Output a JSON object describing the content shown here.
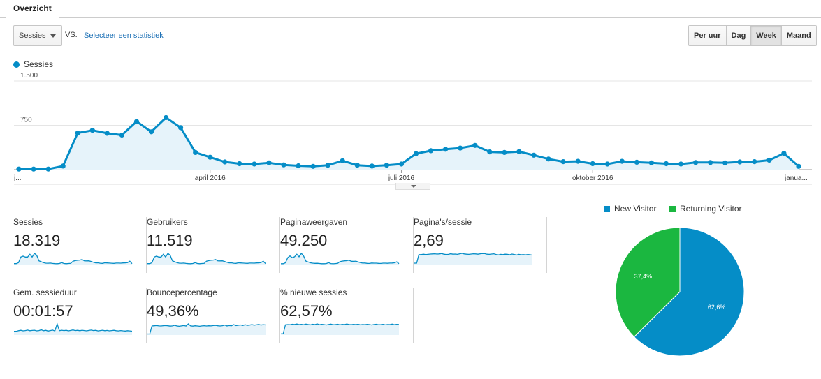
{
  "tab": {
    "label": "Overzicht"
  },
  "controls": {
    "metric_select": "Sessies",
    "vs_label": "VS.",
    "compare_link": "Selecteer een statistiek",
    "granularity": [
      {
        "label": "Per uur",
        "active": false
      },
      {
        "label": "Dag",
        "active": false
      },
      {
        "label": "Week",
        "active": true
      },
      {
        "label": "Maand",
        "active": false
      }
    ]
  },
  "colors": {
    "primary": "#058dc7",
    "fill": "#e6f3fa",
    "new": "#058dc7",
    "returning": "#1bb740"
  },
  "chart_data": [
    {
      "type": "area",
      "series": [
        {
          "name": "Sessies",
          "values": [
            10,
            10,
            10,
            60,
            620,
            665,
            615,
            585,
            815,
            640,
            880,
            710,
            290,
            210,
            130,
            100,
            95,
            115,
            80,
            65,
            55,
            75,
            150,
            75,
            60,
            75,
            95,
            270,
            320,
            345,
            365,
            410,
            300,
            290,
            305,
            245,
            180,
            135,
            140,
            100,
            95,
            140,
            125,
            115,
            100,
            95,
            120,
            120,
            115,
            130,
            135,
            160,
            275,
            55
          ]
        }
      ],
      "x_tick_labels": [
        "j...",
        "april 2016",
        "juli 2016",
        "oktober 2016",
        "janua..."
      ],
      "y_tick_labels": [
        "1.500",
        "750"
      ],
      "ylim": [
        0,
        1500
      ],
      "grid": true,
      "legend": "top-left"
    },
    {
      "type": "pie",
      "labels": [
        "New Visitor",
        "Returning Visitor"
      ],
      "values": [
        62.6,
        37.4
      ],
      "data_labels": [
        "62,6%",
        "37,4%"
      ],
      "legend": "top"
    }
  ],
  "metrics": [
    {
      "label": "Sessies",
      "value": "18.319",
      "spark": [
        1,
        1,
        2,
        8,
        9,
        8,
        8,
        11,
        8,
        12,
        10,
        4,
        3,
        2,
        1.5,
        1.4,
        1.6,
        1.2,
        1,
        0.9,
        1.1,
        2,
        1.1,
        0.9,
        1.1,
        1.3,
        3.6,
        4.2,
        4.6,
        4.8,
        5.4,
        4,
        3.9,
        4,
        3.3,
        2.4,
        1.8,
        1.9,
        1.4,
        1.3,
        1.9,
        1.7,
        1.6,
        1.4,
        1.3,
        1.6,
        1.6,
        1.5,
        1.7,
        1.8,
        2.1,
        3.6,
        1
      ]
    },
    {
      "label": "Gebruikers",
      "value": "11.519",
      "spark": [
        1,
        1,
        2,
        8,
        9,
        8,
        8,
        11,
        8,
        12,
        10,
        4,
        3,
        2,
        1.5,
        1.4,
        1.6,
        1.2,
        1,
        0.9,
        1.1,
        2,
        1.1,
        0.9,
        1.1,
        1.3,
        3.6,
        4.2,
        4.6,
        4.8,
        5.4,
        4,
        3.9,
        4,
        3.3,
        2.4,
        1.8,
        1.9,
        1.4,
        1.3,
        1.9,
        1.7,
        1.6,
        1.4,
        1.3,
        1.6,
        1.6,
        1.5,
        1.7,
        1.8,
        2.1,
        3.6,
        1
      ]
    },
    {
      "label": "Paginaweergaven",
      "value": "49.250",
      "spark": [
        1,
        1,
        2,
        8,
        10,
        8,
        9,
        12,
        9,
        13,
        10,
        4,
        3,
        2,
        1.6,
        1.4,
        1.5,
        1.2,
        1,
        1,
        1.1,
        2.2,
        1.1,
        0.9,
        1.1,
        1.4,
        3.3,
        4,
        4.3,
        4.5,
        5,
        3.8,
        3.7,
        3.9,
        3.1,
        2.3,
        1.7,
        1.8,
        1.4,
        1.3,
        1.8,
        1.6,
        1.6,
        1.4,
        1.3,
        1.6,
        1.6,
        1.5,
        1.7,
        1.8,
        2,
        3.2,
        1
      ]
    },
    {
      "label": "Pagina's/sessie",
      "value": "2,69",
      "spark": [
        1,
        1,
        7,
        7,
        7.3,
        7,
        7.2,
        7.4,
        7.5,
        7.6,
        7.4,
        7.5,
        7.8,
        7.3,
        7.1,
        7.2,
        7.6,
        7.3,
        7.4,
        7.2,
        7.6,
        7.9,
        7.5,
        7.3,
        7.2,
        7.4,
        7.6,
        7.5,
        7.3,
        7.6,
        7.8,
        7.7,
        7.3,
        7.2,
        7.4,
        7.6,
        7.1,
        6.8,
        7.2,
        7,
        7.3,
        7.2,
        6.9,
        7.4,
        7.1,
        6.7,
        7.2,
        6.9,
        7,
        6.8,
        7.1,
        6.9,
        6.6
      ]
    },
    {
      "label": "Gem. sessieduur",
      "value": "00:01:57",
      "spark": [
        3,
        3,
        3.5,
        3.8,
        3.4,
        3.6,
        4,
        3.5,
        3.7,
        3.9,
        3.4,
        3.6,
        4.2,
        3.5,
        3.8,
        3.2,
        3.6,
        4,
        3.3,
        9,
        3.5,
        3.9,
        3.6,
        3.8,
        3.4,
        3.7,
        4.1,
        3.6,
        3.8,
        3.5,
        3.9,
        3.6,
        3.4,
        3.7,
        4,
        3.6,
        3.8,
        3.3,
        3.6,
        3.9,
        3.5,
        3.7,
        3.4,
        3.6,
        3.8,
        3.5,
        3.3,
        3.6,
        3.4,
        3.2,
        3.5,
        3.3,
        3.1
      ]
    },
    {
      "label": "Bouncepercentage",
      "value": "49,36%",
      "spark": [
        1,
        1,
        8.5,
        8.7,
        8.9,
        8.6,
        8.5,
        8.8,
        9,
        8.7,
        8.4,
        8.6,
        9.2,
        8.5,
        8.3,
        8.6,
        8.9,
        8.5,
        10.5,
        8.6,
        8.4,
        8.7,
        8.5,
        8.3,
        8.6,
        8.8,
        8.5,
        8.7,
        8.6,
        8.9,
        9.1,
        8.7,
        8.5,
        8.8,
        9.4,
        8.6,
        8.9,
        8.7,
        9.8,
        8.9,
        9.2,
        9.5,
        9,
        9.7,
        9.1,
        9.4,
        9.8,
        9.3,
        9.6,
        10,
        9.4,
        9.8,
        9.5
      ]
    },
    {
      "label": "% nieuwe sessies",
      "value": "62,57%",
      "spark": [
        1,
        1,
        8.4,
        8.6,
        8.5,
        8.9,
        8.7,
        9.1,
        8.6,
        8.8,
        8.5,
        9,
        8.7,
        8.4,
        8.9,
        8.6,
        9.2,
        8.5,
        8.8,
        8.6,
        8.3,
        8.7,
        9,
        8.5,
        8.6,
        8.9,
        8.4,
        8.8,
        8.6,
        9.1,
        8.7,
        8.5,
        8.8,
        8.6,
        8.9,
        8.4,
        8.7,
        8.5,
        8.8,
        8.6,
        8.3,
        8.7,
        8.9,
        8.5,
        8.6,
        8.8,
        8.4,
        8.7,
        8.6,
        9,
        8.5,
        8.8,
        8.7
      ]
    }
  ]
}
